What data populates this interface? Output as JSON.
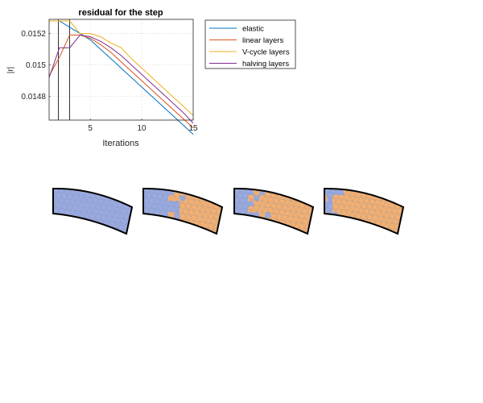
{
  "chart_data": {
    "type": "line",
    "title": "residual for the step",
    "xlabel": "Iterations",
    "ylabel": "|r|",
    "xlim": [
      1,
      15
    ],
    "ylim": [
      0.01465,
      0.01529
    ],
    "xticks": [
      5,
      10,
      15
    ],
    "xtick_labels": [
      "5",
      "10",
      "15"
    ],
    "yticks": [
      0.0148,
      0.015,
      0.0152
    ],
    "ytick_labels": [
      "0.0148",
      "0.015",
      "0.0152"
    ],
    "grid": true,
    "legend_position": "outside-right",
    "series": [
      {
        "name": "elastic",
        "color": "#0072BD",
        "x": [
          1,
          2,
          3,
          4,
          5,
          6,
          7,
          8,
          9,
          10,
          11,
          12,
          13,
          14,
          15
        ],
        "y": [
          0.01528,
          0.01528,
          0.01524,
          0.0152,
          0.01516,
          0.0151,
          0.01504,
          0.01498,
          0.01492,
          0.01486,
          0.0148,
          0.01474,
          0.01468,
          0.01462,
          0.01456
        ]
      },
      {
        "name": "linear layers",
        "color": "#D95319",
        "x": [
          1,
          2,
          3,
          4,
          5,
          6,
          7,
          8,
          9,
          10,
          11,
          12,
          13,
          14,
          15
        ],
        "y": [
          0.01493,
          0.01505,
          0.01519,
          0.01519,
          0.01517,
          0.01513,
          0.01508,
          0.01502,
          0.01496,
          0.0149,
          0.01484,
          0.01478,
          0.01472,
          0.01466,
          0.0146
        ]
      },
      {
        "name": "V-cycle layers",
        "color": "#EDB120",
        "x": [
          1,
          2,
          3,
          4,
          5,
          6,
          7,
          8,
          9,
          10,
          11,
          12,
          13,
          14,
          15
        ],
        "y": [
          0.01528,
          0.01528,
          0.01528,
          0.0152,
          0.0152,
          0.01518,
          0.01514,
          0.01511,
          0.01504,
          0.01498,
          0.01492,
          0.01486,
          0.0148,
          0.01474,
          0.01468
        ]
      },
      {
        "name": "halving layers",
        "color": "#7E2F8E",
        "x": [
          1,
          2,
          3,
          4,
          5,
          6,
          7,
          8,
          9,
          10,
          11,
          12,
          13,
          14,
          15
        ],
        "y": [
          0.01492,
          0.01511,
          0.01511,
          0.01519,
          0.01518,
          0.01515,
          0.01511,
          0.01506,
          0.015,
          0.01494,
          0.01488,
          0.01482,
          0.01476,
          0.0147,
          0.01463
        ]
      }
    ],
    "vertical_markers": [
      1.9,
      3
    ]
  },
  "meshes": {
    "colors": {
      "blue": "#9AAAE0",
      "orange": "#F5B070",
      "mesh_line": "#7D8FB0",
      "outline": "#000000"
    },
    "panels": [
      {
        "orange_fraction": 0.0
      },
      {
        "orange_fraction": 0.55
      },
      {
        "orange_fraction": 0.7
      },
      {
        "orange_fraction": 0.85
      }
    ]
  }
}
